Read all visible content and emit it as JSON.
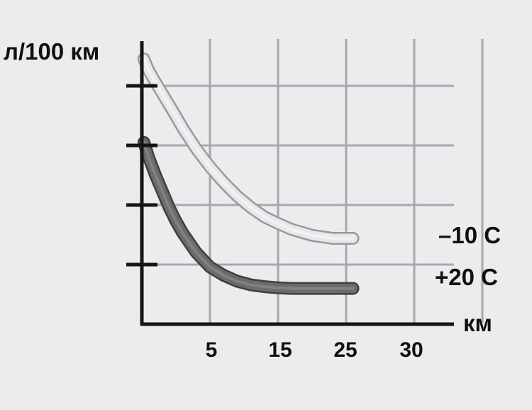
{
  "chart_data": {
    "type": "line",
    "ylabel": "л/100 км",
    "xlabel": "км",
    "x_ticks": [
      "5",
      "15",
      "25",
      "30"
    ],
    "y_tick_count": 4,
    "grid": true,
    "legend": "right, at the end of each line",
    "series": [
      {
        "name": "–10 С",
        "color": "#e8e8ea",
        "x": [
          0.3,
          1,
          2,
          3,
          4,
          5,
          6,
          8,
          10,
          12,
          14,
          16,
          18,
          20,
          22,
          25,
          28,
          31
        ],
        "y": [
          4.45,
          4.26,
          4.06,
          3.87,
          3.68,
          3.49,
          3.29,
          2.94,
          2.64,
          2.38,
          2.15,
          1.96,
          1.8,
          1.69,
          1.59,
          1.49,
          1.44,
          1.44
        ]
      },
      {
        "name": "+20 С",
        "color": "#6b6b6e",
        "x": [
          0.3,
          1,
          2,
          3,
          4,
          5,
          6,
          8,
          10,
          12,
          14,
          16,
          18,
          20,
          22,
          25,
          28,
          31
        ],
        "y": [
          3.05,
          2.8,
          2.5,
          2.23,
          1.96,
          1.73,
          1.53,
          1.2,
          0.96,
          0.82,
          0.72,
          0.66,
          0.63,
          0.61,
          0.6,
          0.6,
          0.6,
          0.6
        ]
      }
    ]
  }
}
